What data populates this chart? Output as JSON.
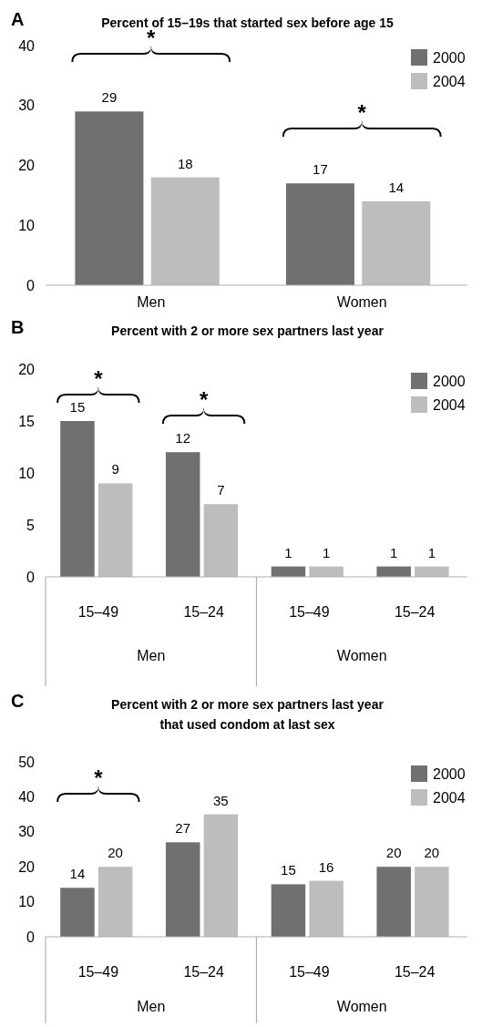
{
  "chart_data": [
    {
      "type": "bar",
      "title": "Percent of 15–19s that started sex before age 15",
      "categories": [
        "Men",
        "Women"
      ],
      "ylim": [
        0,
        40
      ],
      "yticks": [
        0,
        10,
        20,
        30,
        40
      ],
      "grid": false,
      "legend": "top right",
      "data_labels": true,
      "series": [
        {
          "name": "2000",
          "color": "#707070",
          "values": [
            29,
            17
          ]
        },
        {
          "name": "2004",
          "color": "#bdbdbd",
          "values": [
            18,
            14
          ]
        }
      ],
      "annotations": [
        "A",
        "*",
        "*"
      ]
    },
    {
      "type": "bar",
      "title": "Percent with 2 or more sex partners last year",
      "categories": [
        "15–49",
        "15–24",
        "15–49",
        "15–24"
      ],
      "ylim": [
        0,
        20
      ],
      "yticks": [
        0,
        5,
        10,
        15,
        20
      ],
      "grid": false,
      "legend": "top right",
      "data_labels": true,
      "series": [
        {
          "name": "2000",
          "color": "#707070",
          "values": [
            15,
            12,
            1,
            1
          ]
        },
        {
          "name": "2004",
          "color": "#bdbdbd",
          "values": [
            9,
            7,
            1,
            1
          ]
        }
      ],
      "annotations": [
        "B",
        "Men",
        "Women",
        "*",
        "*"
      ]
    },
    {
      "type": "bar",
      "title": "Percent with 2 or more sex partners last year\nthat used condom at last sex",
      "categories": [
        "15–49",
        "15–24",
        "15–49",
        "15–24"
      ],
      "ylim": [
        0,
        50
      ],
      "yticks": [
        0,
        10,
        20,
        30,
        40,
        50
      ],
      "grid": false,
      "legend": "top right",
      "data_labels": true,
      "series": [
        {
          "name": "2000",
          "color": "#707070",
          "values": [
            14,
            27,
            15,
            20
          ]
        },
        {
          "name": "2004",
          "color": "#bdbdbd",
          "values": [
            20,
            35,
            16,
            20
          ]
        }
      ],
      "annotations": [
        "C",
        "Men",
        "Women",
        "*"
      ]
    }
  ]
}
